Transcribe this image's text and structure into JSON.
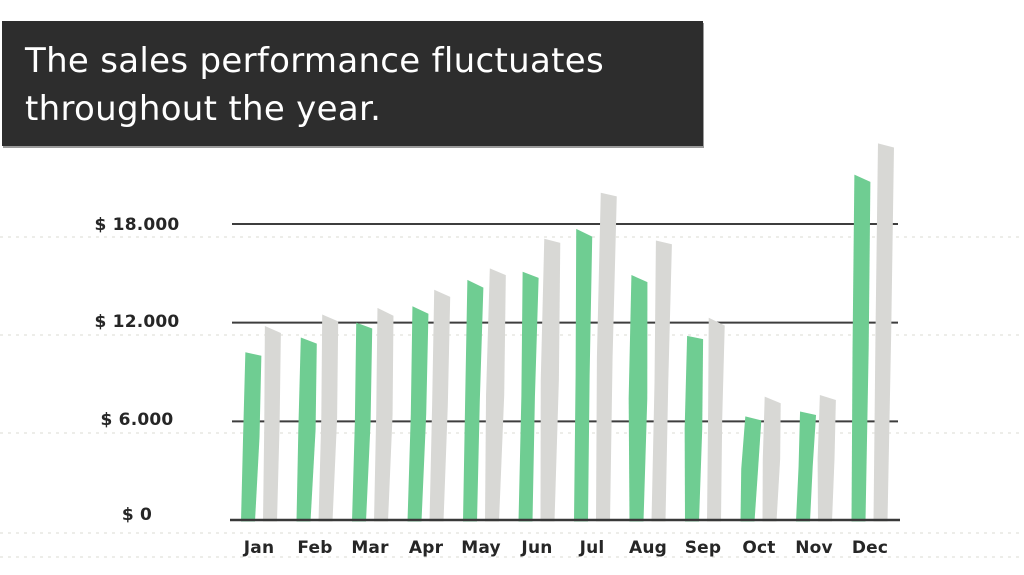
{
  "header": {
    "title_lines": [
      "The sales performance fluctuates",
      "throughout the year."
    ],
    "bg_color": "#2d2d2d",
    "text_color": "#ffffff"
  },
  "chart_data": {
    "type": "bar",
    "title": "The sales performance fluctuates throughout the year.",
    "categories": [
      "Jan",
      "Feb",
      "Mar",
      "Apr",
      "May",
      "Jun",
      "Jul",
      "Aug",
      "Sep",
      "Oct",
      "Nov",
      "Dec"
    ],
    "series": [
      {
        "name": "green-bars",
        "color": "#6fcd92",
        "values": [
          10200,
          11100,
          12000,
          13000,
          14600,
          15100,
          17700,
          14900,
          11200,
          6300,
          6600,
          21000
        ]
      },
      {
        "name": "gray-bars",
        "color": "#d8d8d5",
        "values": [
          11800,
          12500,
          12900,
          14000,
          15300,
          17100,
          19900,
          17000,
          12300,
          7500,
          7600,
          22900
        ]
      }
    ],
    "y_ticks": [
      {
        "label": "$ 18.000",
        "value": 18000
      },
      {
        "label": "$ 12.000",
        "value": 12000
      },
      {
        "label": "$ 6.000",
        "value": 6000
      },
      {
        "label": "$ 0",
        "value": 0
      }
    ],
    "ylim": [
      0,
      23000
    ],
    "xlabel": "",
    "ylabel": "",
    "grid": true,
    "legend": "none",
    "style": "hand-drawn",
    "grid_color": "#3d3d3d",
    "axis_color": "#383838",
    "guide_dot_color": "#e7e7e2",
    "label_color": "#262626"
  }
}
